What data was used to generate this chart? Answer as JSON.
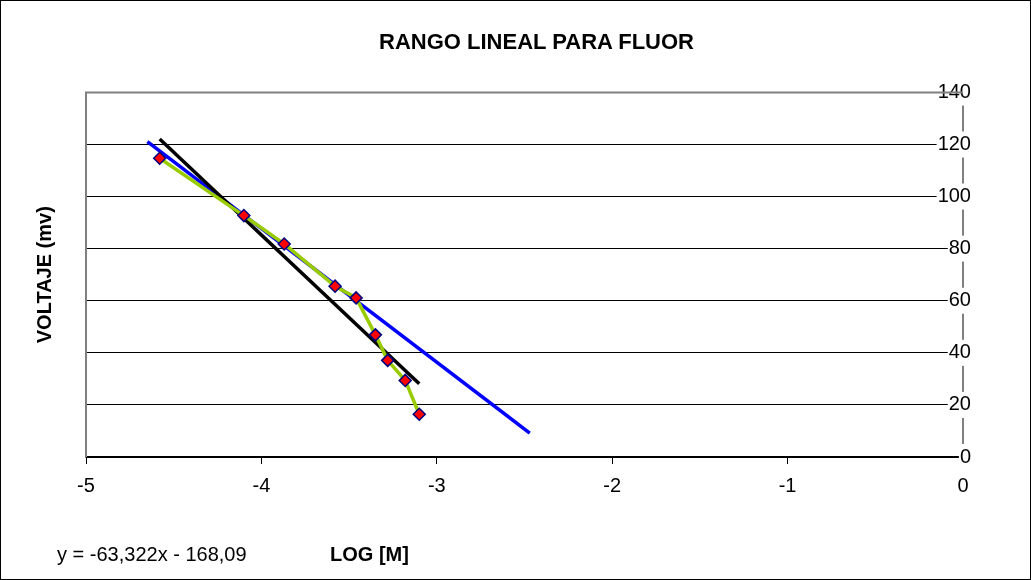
{
  "chart_data": {
    "type": "line",
    "title": "RANGO LINEAL PARA FLUOR",
    "xlabel": "LOG [M]",
    "ylabel": "VOLTAJE (mv)",
    "annotations": [
      "y = -63,322x - 168,09"
    ],
    "xlim": [
      -5,
      0
    ],
    "xticks": [
      -5,
      -4,
      -3,
      -2,
      -1,
      0
    ],
    "ylim": [
      0,
      140
    ],
    "yticks": [
      0,
      20,
      40,
      60,
      80,
      100,
      120,
      140
    ],
    "grid": "y",
    "legend": false,
    "marker": "diamond",
    "line_style": "solid",
    "series": [
      {
        "type": "line",
        "color": "#99cc00",
        "x": [
          -4.58,
          -4.1,
          -3.87,
          -3.58,
          -3.46,
          -3.35,
          -3.28,
          -3.18,
          -3.1
        ],
        "values": [
          114.7,
          92.7,
          81.8,
          65.6,
          61.1,
          46.9,
          37.1,
          29.4,
          16.4
        ]
      },
      {
        "type": "line",
        "color": "#000000",
        "marker": "none",
        "x": [
          -4.58,
          -3.1
        ],
        "values": [
          122.1,
          28.1
        ]
      },
      {
        "type": "line",
        "color": "#0000ff",
        "marker": "none",
        "x": [
          -4.65,
          -2.47
        ],
        "values": [
          121.1,
          9.2
        ]
      }
    ]
  }
}
